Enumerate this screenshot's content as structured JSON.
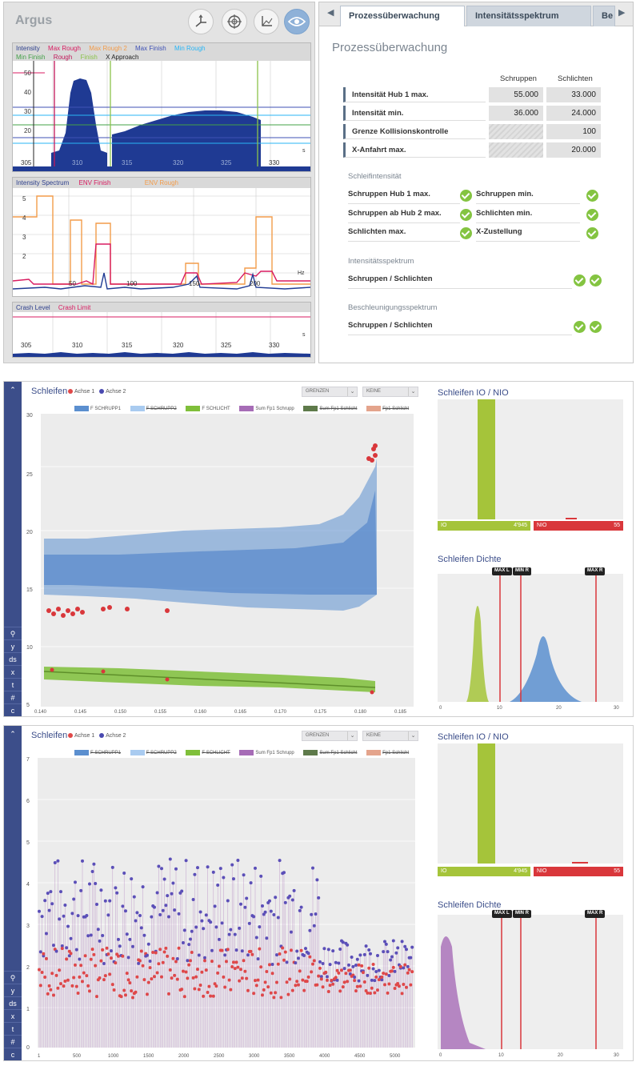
{
  "argus": {
    "app_title": "Argus",
    "toolbar_icons": [
      "axes-icon",
      "target-icon",
      "axes-chart-icon",
      "eye-icon"
    ],
    "graph1": {
      "legend": [
        {
          "label": "Intensity",
          "color": "#2c3e8c"
        },
        {
          "label": "Max Rough",
          "color": "#d81b60"
        },
        {
          "label": "Max Rough 2",
          "color": "#f39c4a"
        },
        {
          "label": "Max Finish",
          "color": "#3f51b5"
        },
        {
          "label": "Min Rough",
          "color": "#29b6f6"
        },
        {
          "label": "Min Finish",
          "color": "#43a047"
        },
        {
          "label": "Rough",
          "color": "#c2185b"
        },
        {
          "label": "Finish",
          "color": "#8bc34a"
        },
        {
          "label": "X Approach",
          "color": "#222222"
        }
      ],
      "y_ticks": [
        "50",
        "40",
        "30",
        "20"
      ],
      "x_ticks": [
        "305",
        "310",
        "315",
        "320",
        "325",
        "330"
      ],
      "unit": "s"
    },
    "graph2": {
      "legend": [
        {
          "label": "Intensity Spectrum",
          "color": "#2c3e8c"
        },
        {
          "label": "ENV Finish",
          "color": "#d81b60"
        },
        {
          "label": "ENV Rough",
          "color": "#f39c4a"
        }
      ],
      "y_ticks": [
        "5",
        "4",
        "3",
        "2"
      ],
      "x_ticks": [
        "50",
        "100",
        "150",
        "200"
      ],
      "unit": "Hz"
    },
    "graph3": {
      "legend": [
        {
          "label": "Crash Level",
          "color": "#2c3e8c"
        },
        {
          "label": "Crash Limit",
          "color": "#d81b60"
        }
      ],
      "x_ticks": [
        "305",
        "310",
        "315",
        "320",
        "325",
        "330"
      ],
      "unit": "s"
    },
    "tabs": [
      "Prozessüberwachung",
      "Intensitätsspektrum",
      "Be"
    ],
    "panel_title": "Prozessüberwachung",
    "col_rough": "Schruppen",
    "col_finish": "Schlichten",
    "rows": [
      {
        "label": "Intensität Hub 1 max.",
        "rough": "55.000",
        "finish": "33.000"
      },
      {
        "label": "Intensität min.",
        "rough": "36.000",
        "finish": "24.000"
      },
      {
        "label": "Grenze Kollisionskontrolle",
        "rough": "",
        "finish": "100"
      },
      {
        "label": "X-Anfahrt max.",
        "rough": "",
        "finish": "20.000"
      }
    ],
    "section_grind": "Schleifintensität",
    "grind_checks": [
      {
        "left": "Schruppen Hub 1 max.",
        "right": "Schruppen min."
      },
      {
        "left": "Schruppen ab Hub 2 max.",
        "right": "Schlichten min."
      },
      {
        "left": "Schlichten max.",
        "right": "X-Zustellung"
      }
    ],
    "section_spectrum": "Intensitätsspektrum",
    "spectrum_row": "Schruppen / Schlichten",
    "section_accel": "Beschleunigungsspektrum",
    "accel_row": "Schruppen / Schlichten"
  },
  "panels": [
    {
      "title": "Schleifen",
      "axis_legend": [
        "Achse 1",
        "Achse 2"
      ],
      "dropdown1": "GRENZEN",
      "dropdown2": "KEINE",
      "series_legend": [
        "F SCHRUPP1",
        "F SCHRUPP2",
        "F SCHLICHT",
        "Sum Fp1 Schrupp",
        "Sum Fp1 Schlicht",
        "Fp1 Schlicht"
      ],
      "y_ticks": [
        "30",
        "25",
        "20",
        "15",
        "10",
        "5"
      ],
      "x_ticks": [
        "0.140",
        "0.145",
        "0.150",
        "0.155",
        "0.160",
        "0.165",
        "0.170",
        "0.175",
        "0.180",
        "0.185"
      ],
      "io_title": "Schleifen IO / NIO",
      "io_label": "IO",
      "io_value": "4'945",
      "nio_label": "NIO",
      "nio_value": "55",
      "density_title": "Schleifen Dichte",
      "limits": [
        "MAX L",
        "MIN R",
        "MAX R"
      ],
      "density_x": [
        "0",
        "10",
        "20",
        "30"
      ]
    },
    {
      "title": "Schleifen",
      "axis_legend": [
        "Achse 1",
        "Achse 2"
      ],
      "dropdown1": "GRENZEN",
      "dropdown2": "KEINE",
      "series_legend": [
        "F SCHRUPP1",
        "F SCHRUPP2",
        "F SCHLICHT",
        "Sum Fp1 Schrupp",
        "Sum Fp1 Schlicht",
        "Fp1 Schlicht"
      ],
      "y_ticks": [
        "7",
        "6",
        "5",
        "4",
        "3",
        "2",
        "1",
        "0"
      ],
      "x_ticks": [
        "1",
        "500",
        "1000",
        "1500",
        "2000",
        "2500",
        "3000",
        "3500",
        "4000",
        "4500",
        "5000"
      ],
      "io_title": "Schleifen IO / NIO",
      "io_label": "IO",
      "io_value": "4'945",
      "nio_label": "NIO",
      "nio_value": "55",
      "density_title": "Schleifen Dichte",
      "limits": [
        "MAX L",
        "MIN R",
        "MAX R"
      ],
      "density_x": [
        "0",
        "10",
        "20",
        "30"
      ]
    }
  ],
  "sidebar_buttons": [
    "y",
    "ds",
    "x",
    "t",
    "#",
    "c"
  ]
}
